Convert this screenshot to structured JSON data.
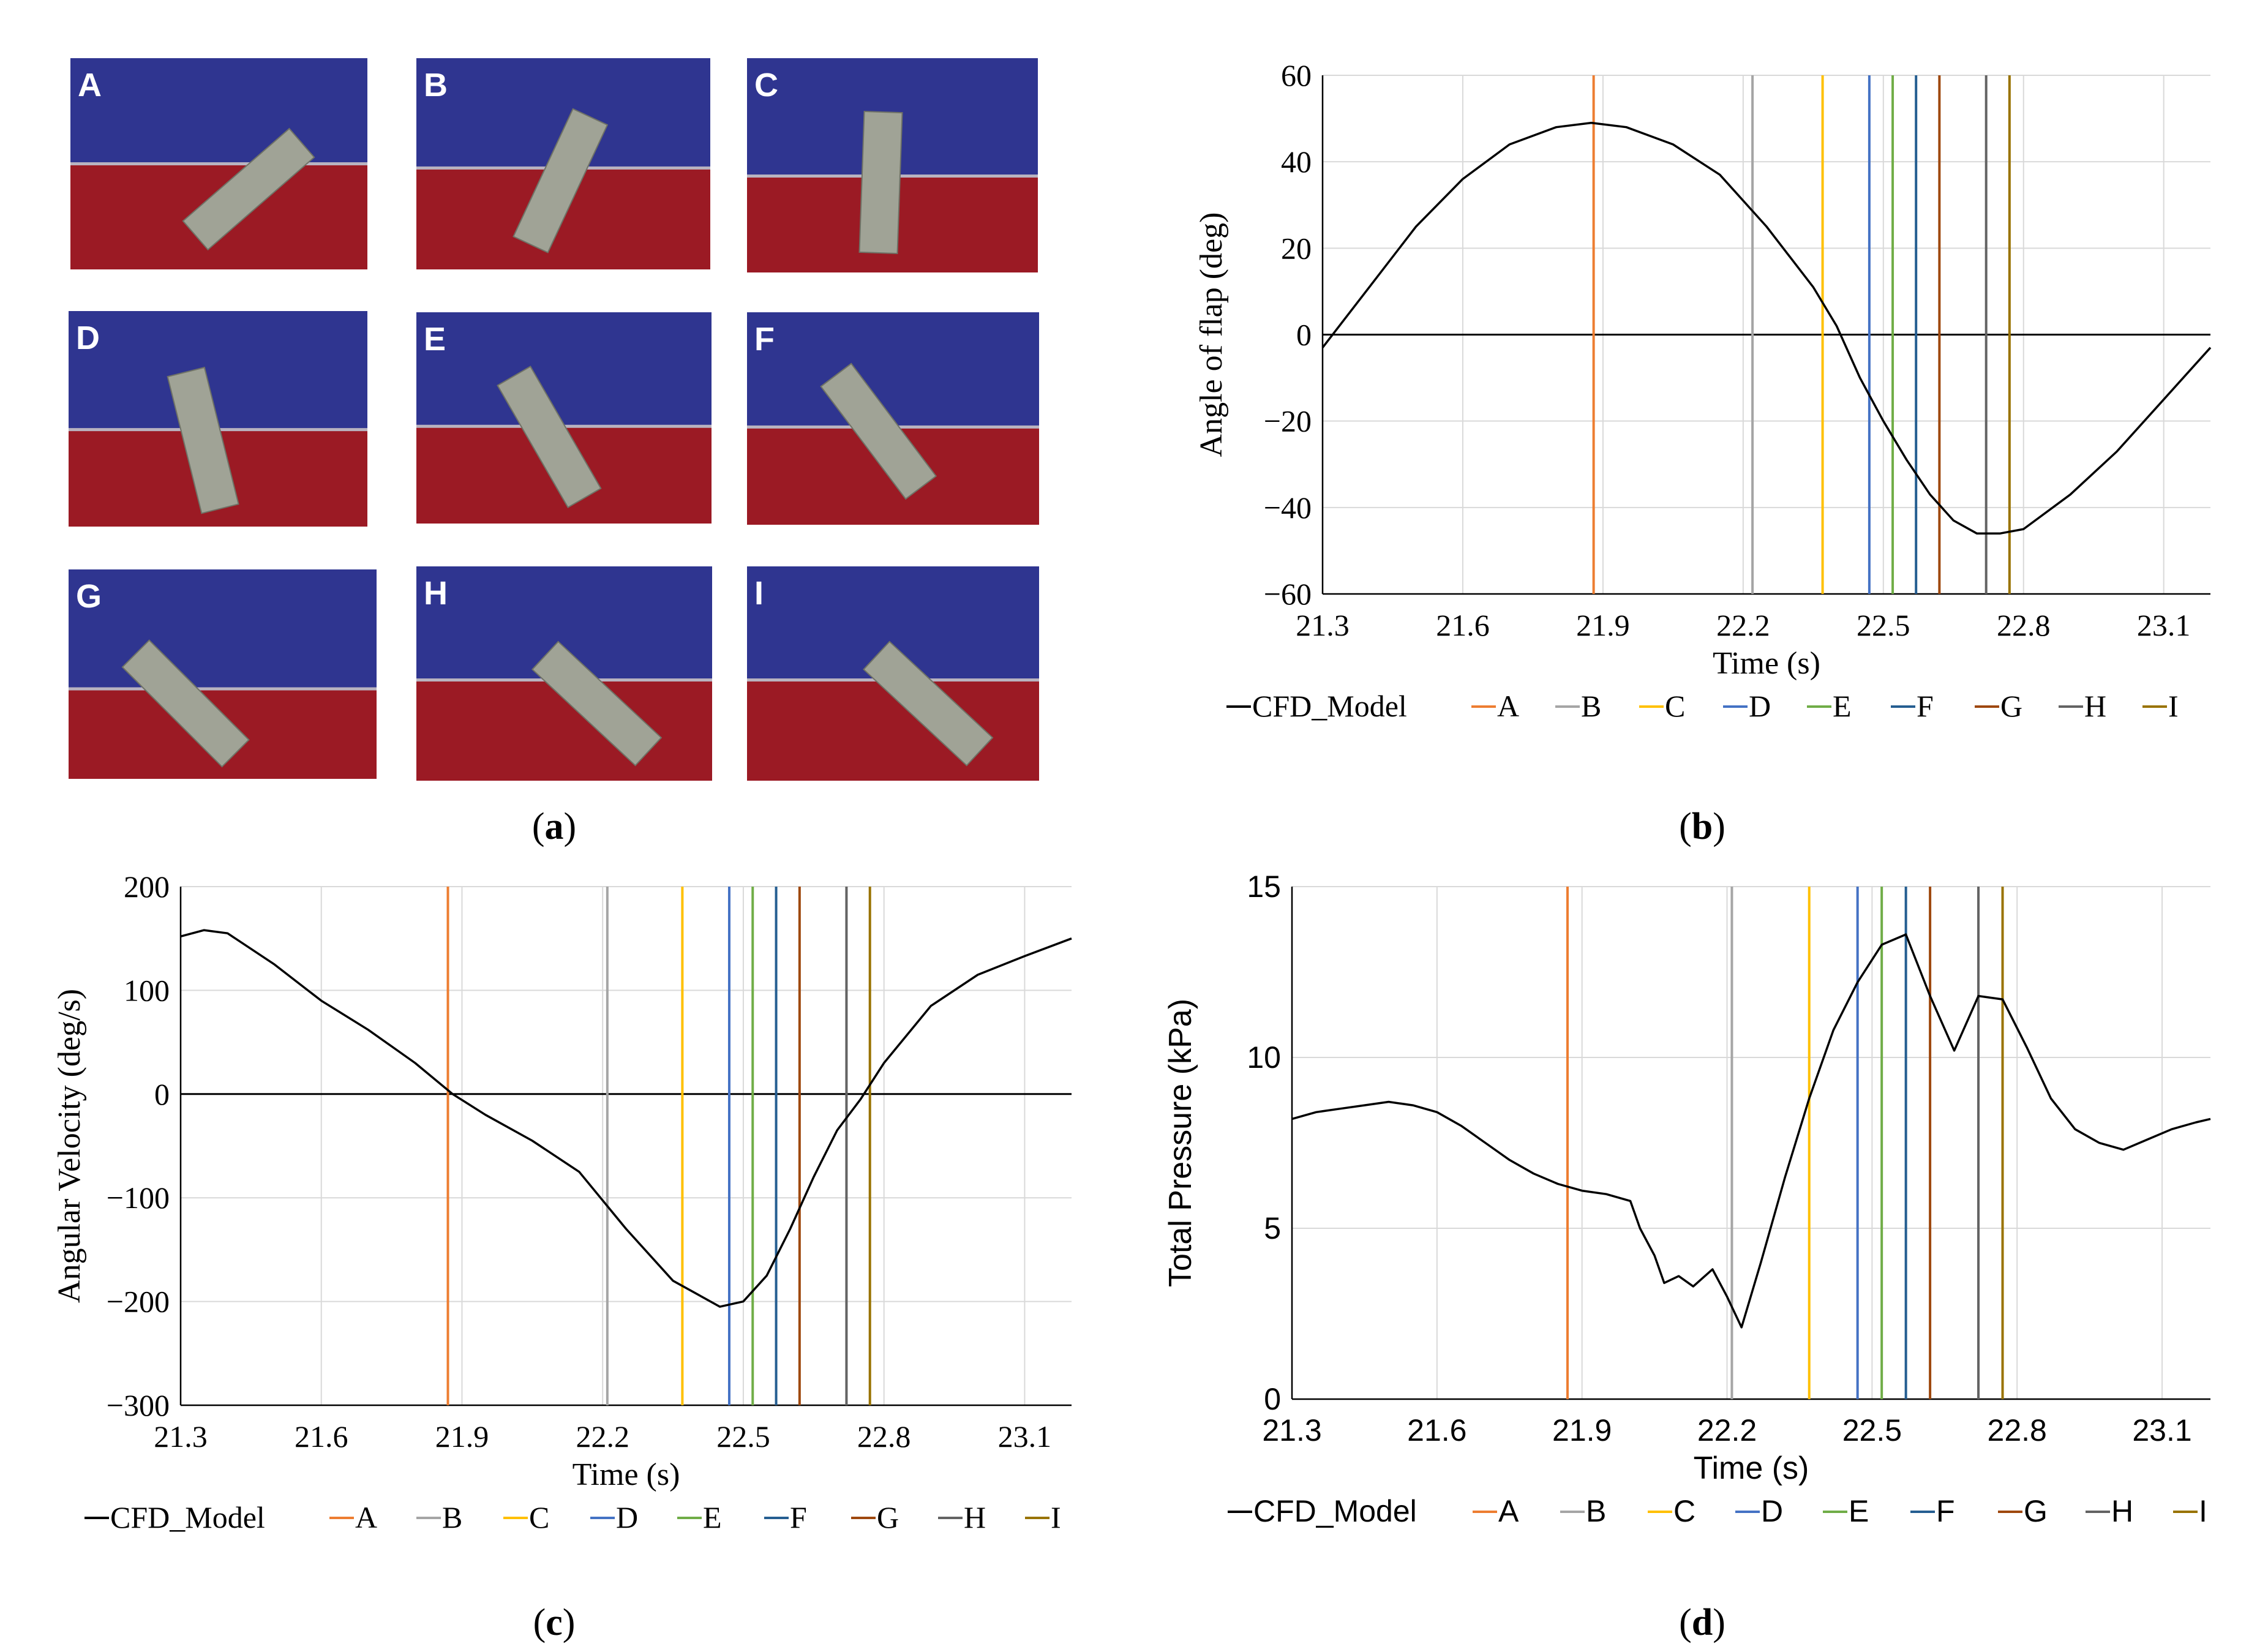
{
  "colors": {
    "water": "#9b1a24",
    "air": "#2f3590",
    "flap": "#a0a396",
    "flap_stroke": "#6f7266",
    "interface": "#b9b3c0",
    "grid": "#d9d9d9",
    "curve": "#000000",
    "markers": {
      "A": "#ed7d31",
      "B": "#a5a5a5",
      "C": "#ffc000",
      "D": "#4472c4",
      "E": "#70ad47",
      "F": "#255e91",
      "G": "#9e480e",
      "H": "#636363",
      "I": "#997300"
    }
  },
  "panel_labels": {
    "a": "a",
    "b": "b",
    "c": "c",
    "d": "d"
  },
  "snapshots": [
    {
      "label": "A",
      "flap_angle_deg": 49
    },
    {
      "label": "B",
      "flap_angle_deg": 25
    },
    {
      "label": "C",
      "flap_angle_deg": 2
    },
    {
      "label": "D",
      "flap_angle_deg": -14
    },
    {
      "label": "E",
      "flap_angle_deg": -30
    },
    {
      "label": "F",
      "flap_angle_deg": -37
    },
    {
      "label": "G",
      "flap_angle_deg": -45
    },
    {
      "label": "H",
      "flap_angle_deg": -47
    },
    {
      "label": "I",
      "flap_angle_deg": -47
    }
  ],
  "chart_data": [
    {
      "panel": "b",
      "type": "line",
      "xlabel": "Time (s)",
      "ylabel": "Angle of flap (deg)",
      "xlim": [
        21.3,
        23.2
      ],
      "ylim": [
        -60,
        60
      ],
      "xticks": [
        21.3,
        21.6,
        21.9,
        22.2,
        22.5,
        22.8,
        23.1
      ],
      "yticks": [
        60,
        40,
        20,
        0,
        -20,
        -40,
        -60
      ],
      "ytick_labels": [
        "60",
        "40",
        "20",
        "0",
        "−20",
        "−40",
        "−60"
      ],
      "grid": true,
      "zero_line": true,
      "legend_position": "bottom",
      "series": [
        {
          "name": "CFD_Model",
          "x": [
            21.3,
            21.4,
            21.5,
            21.6,
            21.7,
            21.8,
            21.875,
            21.95,
            22.05,
            22.15,
            22.25,
            22.35,
            22.4,
            22.45,
            22.5,
            22.55,
            22.6,
            22.65,
            22.7,
            22.75,
            22.8,
            22.9,
            23.0,
            23.1,
            23.2
          ],
          "y": [
            -3,
            11,
            25,
            36,
            44,
            48,
            49,
            48,
            44,
            37,
            25,
            11,
            2,
            -10,
            -20,
            -29,
            -37,
            -43,
            -46,
            -46,
            -45,
            -37,
            -27,
            -15,
            -3
          ]
        }
      ],
      "markers": [
        {
          "label": "A",
          "x": 21.88
        },
        {
          "label": "B",
          "x": 22.22
        },
        {
          "label": "C",
          "x": 22.37
        },
        {
          "label": "D",
          "x": 22.47
        },
        {
          "label": "E",
          "x": 22.52
        },
        {
          "label": "F",
          "x": 22.57
        },
        {
          "label": "G",
          "x": 22.62
        },
        {
          "label": "H",
          "x": 22.72
        },
        {
          "label": "I",
          "x": 22.77
        }
      ]
    },
    {
      "panel": "c",
      "type": "line",
      "xlabel": "Time (s)",
      "ylabel": "Angular Velocity (deg/s)",
      "xlim": [
        21.3,
        23.2
      ],
      "ylim": [
        -300,
        200
      ],
      "xticks": [
        21.3,
        21.6,
        21.9,
        22.2,
        22.5,
        22.8,
        23.1
      ],
      "yticks": [
        200,
        100,
        0,
        -100,
        -200,
        -300
      ],
      "ytick_labels": [
        "200",
        "100",
        "0",
        "−100",
        "−200",
        "−300"
      ],
      "grid": true,
      "zero_line": true,
      "legend_position": "bottom",
      "series": [
        {
          "name": "CFD_Model",
          "x": [
            21.3,
            21.35,
            21.4,
            21.5,
            21.6,
            21.7,
            21.8,
            21.88,
            21.95,
            22.05,
            22.15,
            22.25,
            22.35,
            22.45,
            22.5,
            22.55,
            22.6,
            22.65,
            22.7,
            22.75,
            22.8,
            22.9,
            23.0,
            23.1,
            23.2
          ],
          "y": [
            152,
            158,
            155,
            125,
            90,
            62,
            30,
            0,
            -20,
            -45,
            -75,
            -130,
            -180,
            -205,
            -200,
            -175,
            -130,
            -80,
            -35,
            -5,
            30,
            85,
            115,
            133,
            150
          ]
        }
      ],
      "markers": [
        {
          "label": "A",
          "x": 21.87
        },
        {
          "label": "B",
          "x": 22.21
        },
        {
          "label": "C",
          "x": 22.37
        },
        {
          "label": "D",
          "x": 22.47
        },
        {
          "label": "E",
          "x": 22.52
        },
        {
          "label": "F",
          "x": 22.57
        },
        {
          "label": "G",
          "x": 22.62
        },
        {
          "label": "H",
          "x": 22.72
        },
        {
          "label": "I",
          "x": 22.77
        }
      ]
    },
    {
      "panel": "d",
      "type": "line",
      "xlabel": "Time (s)",
      "ylabel": "Total Pressure (kPa)",
      "xlim": [
        21.3,
        23.2
      ],
      "ylim": [
        0,
        15
      ],
      "xticks": [
        21.3,
        21.6,
        21.9,
        22.2,
        22.5,
        22.8,
        23.1
      ],
      "yticks": [
        15,
        10,
        5,
        0
      ],
      "ytick_labels": [
        "15",
        "10",
        "5",
        "0"
      ],
      "grid": true,
      "zero_line": false,
      "legend_position": "bottom",
      "series": [
        {
          "name": "CFD_Model",
          "x": [
            21.3,
            21.35,
            21.4,
            21.45,
            21.5,
            21.55,
            21.6,
            21.65,
            21.7,
            21.75,
            21.8,
            21.85,
            21.9,
            21.95,
            22.0,
            22.02,
            22.05,
            22.07,
            22.1,
            22.13,
            22.17,
            22.2,
            22.23,
            22.27,
            22.32,
            22.37,
            22.42,
            22.47,
            22.52,
            22.57,
            22.62,
            22.67,
            22.72,
            22.77,
            22.82,
            22.87,
            22.92,
            22.97,
            23.02,
            23.07,
            23.12,
            23.17,
            23.2
          ],
          "y": [
            8.2,
            8.4,
            8.5,
            8.6,
            8.7,
            8.6,
            8.4,
            8.0,
            7.5,
            7.0,
            6.6,
            6.3,
            6.1,
            6.0,
            5.8,
            5.0,
            4.2,
            3.4,
            3.6,
            3.3,
            3.8,
            3.0,
            2.1,
            4.0,
            6.5,
            8.8,
            10.8,
            12.2,
            13.3,
            13.6,
            11.8,
            10.2,
            11.8,
            11.7,
            10.3,
            8.8,
            7.9,
            7.5,
            7.3,
            7.6,
            7.9,
            8.1,
            8.2
          ]
        }
      ],
      "markers": [
        {
          "label": "A",
          "x": 21.87
        },
        {
          "label": "B",
          "x": 22.21
        },
        {
          "label": "C",
          "x": 22.37
        },
        {
          "label": "D",
          "x": 22.47
        },
        {
          "label": "E",
          "x": 22.52
        },
        {
          "label": "F",
          "x": 22.57
        },
        {
          "label": "G",
          "x": 22.62
        },
        {
          "label": "H",
          "x": 22.72
        },
        {
          "label": "I",
          "x": 22.77
        }
      ]
    }
  ],
  "legend": {
    "entries": [
      "CFD_Model",
      "A",
      "B",
      "C",
      "D",
      "E",
      "F",
      "G",
      "H",
      "I"
    ]
  }
}
